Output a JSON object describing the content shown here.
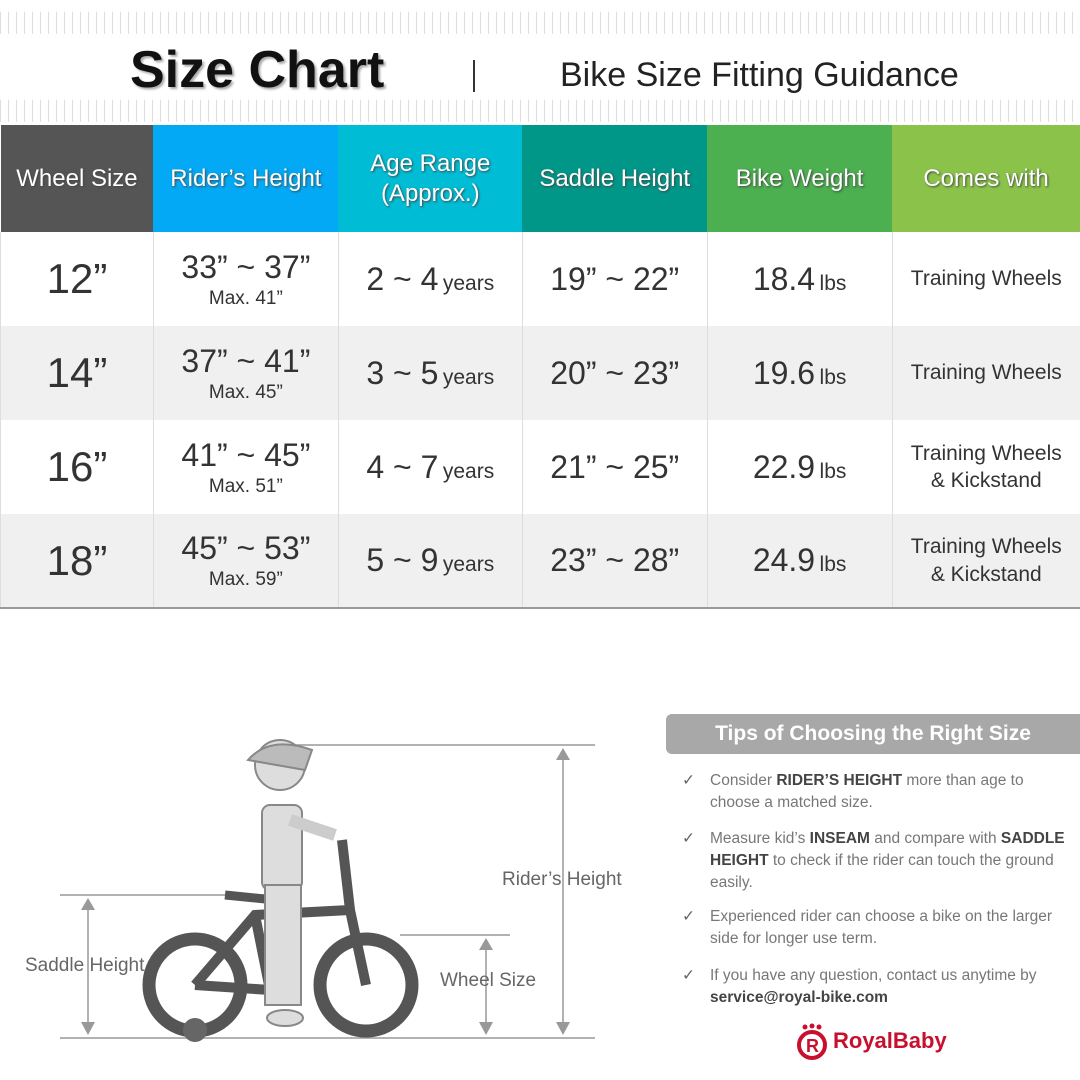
{
  "header": {
    "title": "Size Chart",
    "subtitle": "Bike Size Fitting Guidance"
  },
  "table": {
    "columns": [
      {
        "label": "Wheel Size",
        "color": "#555555"
      },
      {
        "label": "Rider’s Height",
        "color": "#03a9f4"
      },
      {
        "label": "Age Range\n(Approx.)",
        "color": "#00bcd4"
      },
      {
        "label": "Saddle Height",
        "color": "#009688"
      },
      {
        "label": "Bike Weight",
        "color": "#4caf50"
      },
      {
        "label": "Comes with",
        "color": "#8bc34a"
      }
    ],
    "rows": [
      {
        "wheel": "12”",
        "height": "33” ~ 37”",
        "max": "Max. 41”",
        "age": "2 ~ 4",
        "age_unit": "years",
        "saddle": "19” ~ 22”",
        "weight": "18.4",
        "weight_unit": "lbs",
        "comes_with": "Training Wheels",
        "comes_with2": ""
      },
      {
        "wheel": "14”",
        "height": "37” ~ 41”",
        "max": "Max. 45”",
        "age": "3 ~ 5",
        "age_unit": "years",
        "saddle": "20” ~ 23”",
        "weight": "19.6",
        "weight_unit": "lbs",
        "comes_with": "Training Wheels",
        "comes_with2": ""
      },
      {
        "wheel": "16”",
        "height": "41” ~ 45”",
        "max": "Max. 51”",
        "age": "4 ~ 7",
        "age_unit": "years",
        "saddle": "21” ~ 25”",
        "weight": "22.9",
        "weight_unit": "lbs",
        "comes_with": "Training Wheels",
        "comes_with2": "& Kickstand"
      },
      {
        "wheel": "18”",
        "height": "45” ~ 53”",
        "max": "Max. 59”",
        "age": "5 ~ 9",
        "age_unit": "years",
        "saddle": "23” ~ 28”",
        "weight": "24.9",
        "weight_unit": "lbs",
        "comes_with": "Training Wheels",
        "comes_with2": "& Kickstand"
      }
    ]
  },
  "diagram": {
    "riders_height": "Rider’s Height",
    "saddle_height": "Saddle Height",
    "wheel_size": "Wheel Size"
  },
  "tips": {
    "title": "Tips of Choosing the Right Size",
    "items": [
      [
        {
          "t": "Consider "
        },
        {
          "t": "RIDER’S HEIGHT",
          "b": true
        },
        {
          "t": " more than age to choose a matched size."
        }
      ],
      [
        {
          "t": "Measure kid’s "
        },
        {
          "t": "INSEAM",
          "b": true
        },
        {
          "t": " and compare with "
        },
        {
          "t": "SADDLE HEIGHT",
          "b": true
        },
        {
          "t": " to check if the rider can touch the ground easily."
        }
      ],
      [
        {
          "t": "Experienced rider can choose a bike on the larger side for longer use term."
        }
      ],
      [
        {
          "t": "If you have any question, contact us anytime by "
        },
        {
          "t": "service@royal-bike.com",
          "b": true
        }
      ]
    ]
  },
  "brand": {
    "name": "RoyalBaby",
    "color": "#c8102e",
    "check_icon": "check-icon"
  }
}
